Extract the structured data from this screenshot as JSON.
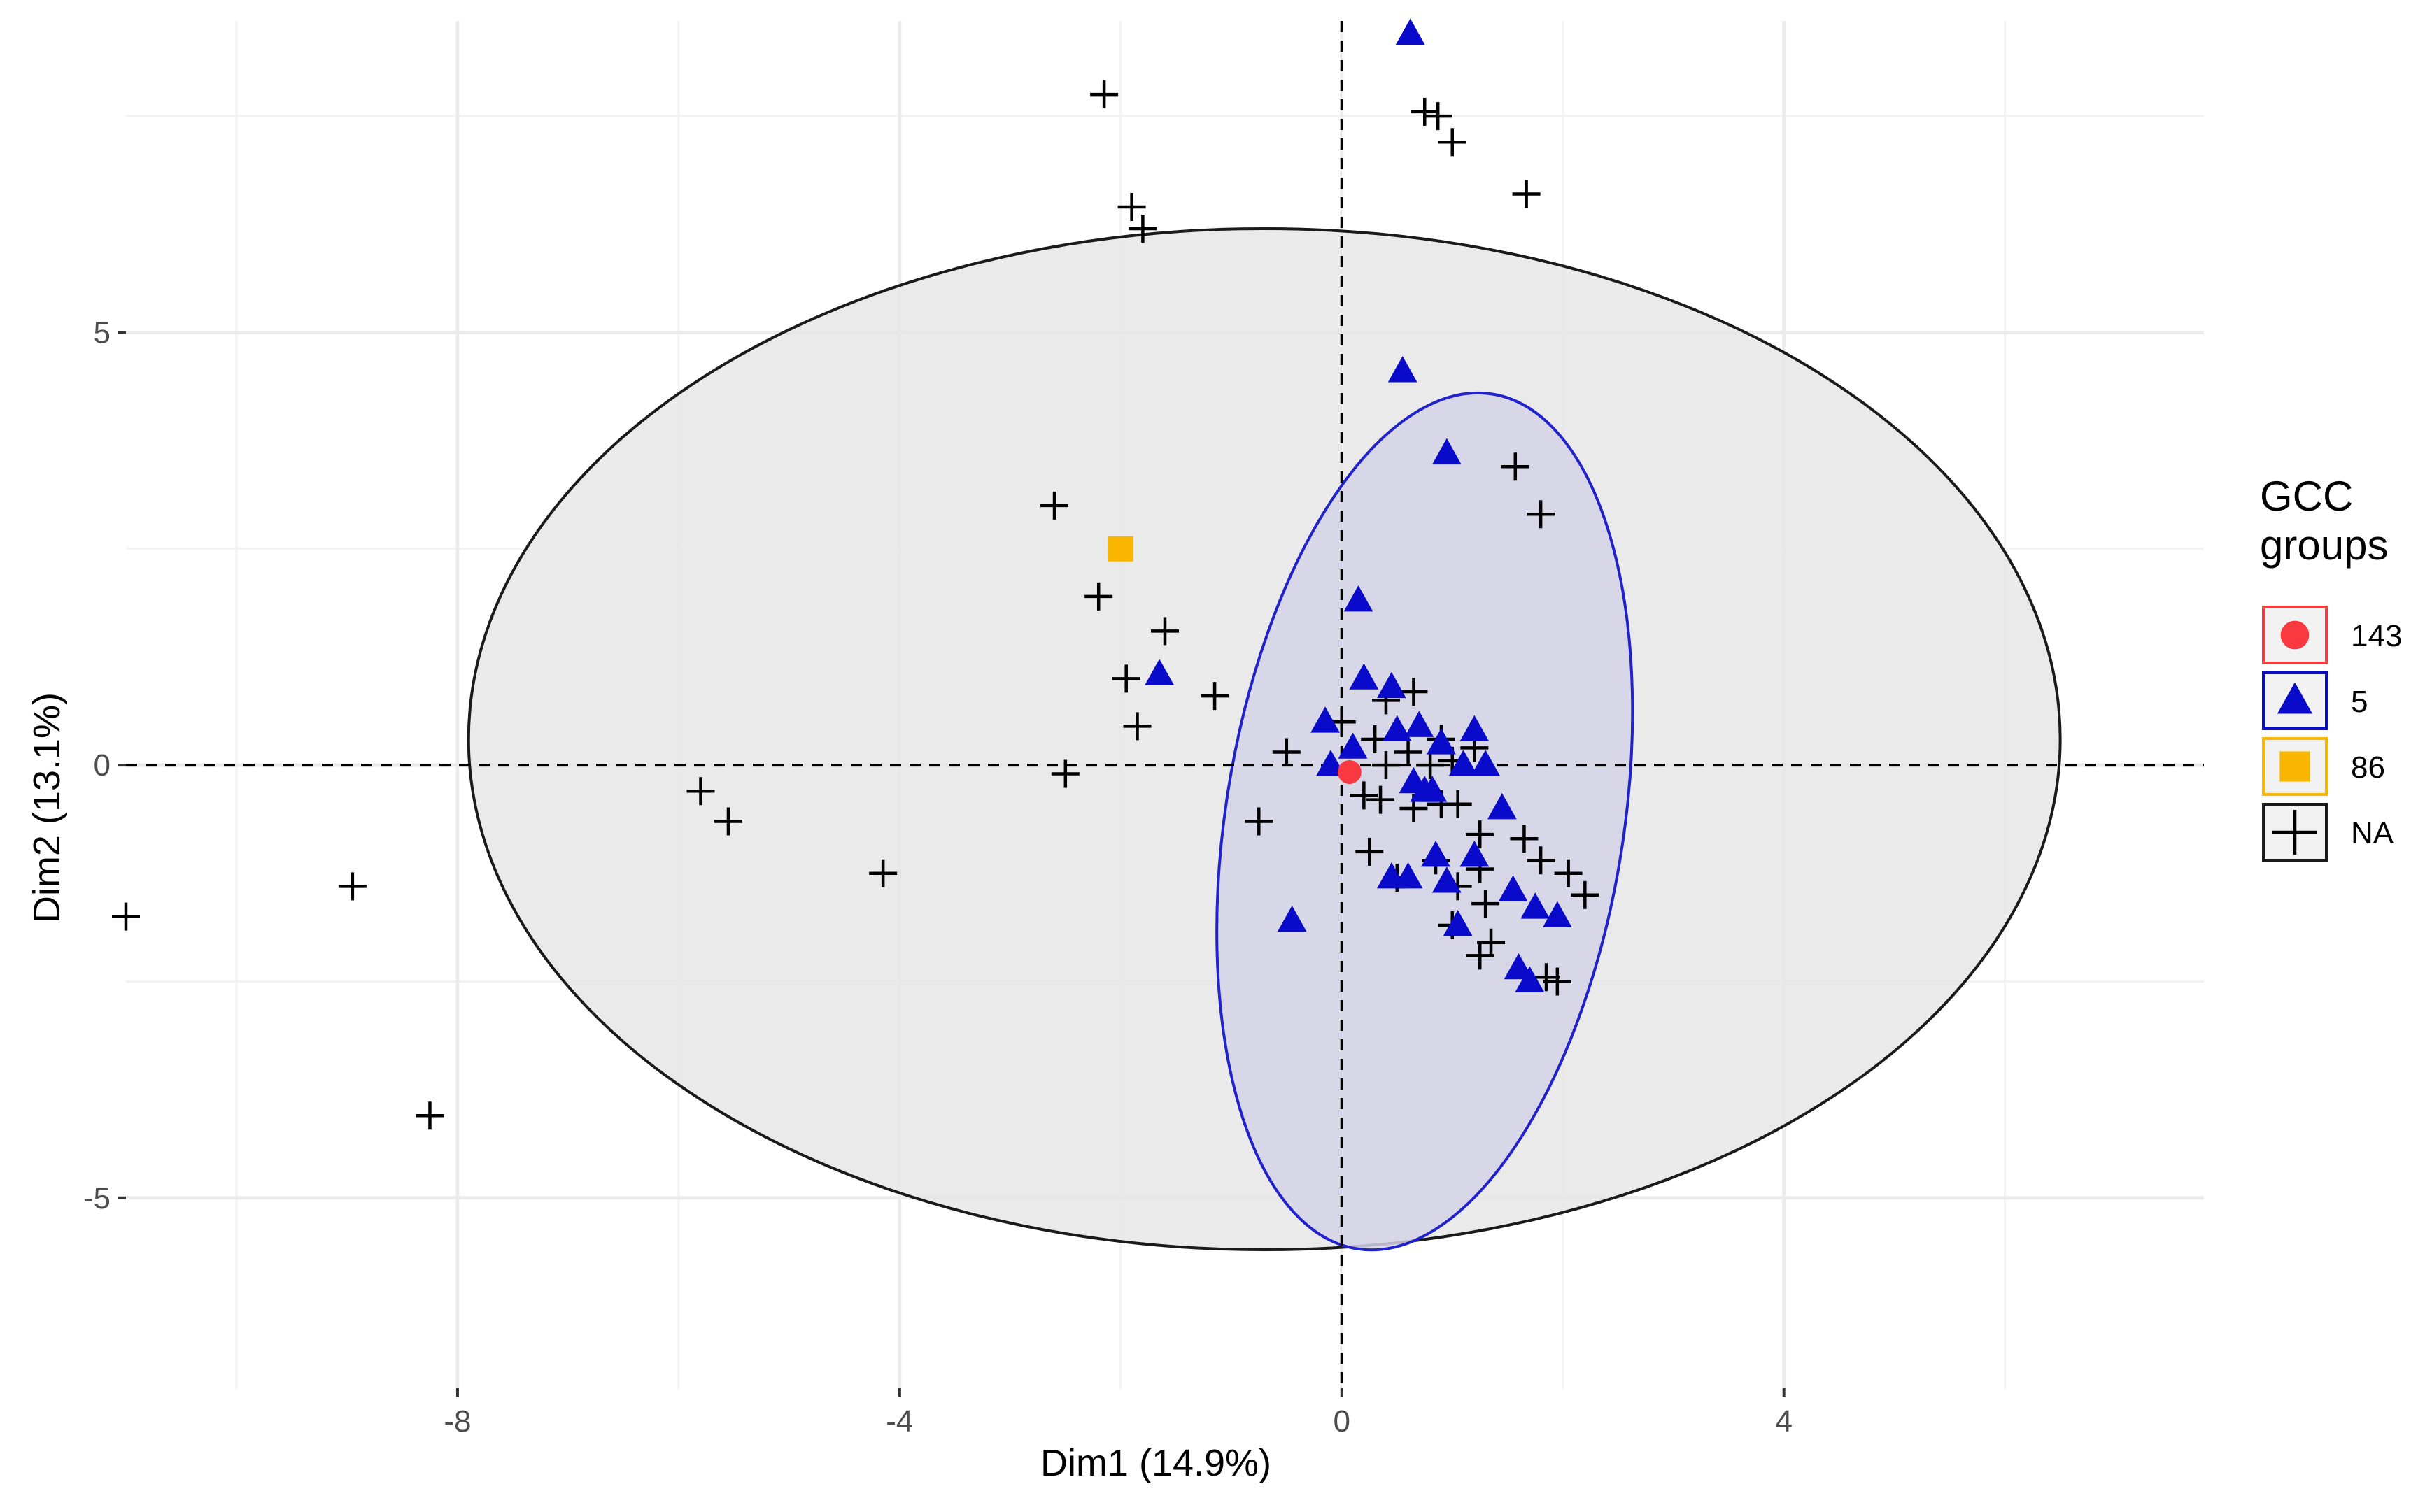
{
  "chart_data": {
    "type": "scatter",
    "title": "",
    "xlabel": "Dim1 (14.9%)",
    "ylabel": "Dim2 (13.1%)",
    "xlim": [
      -11,
      7.8
    ],
    "ylim": [
      -7.2,
      8.6
    ],
    "x_ticks": [
      -8,
      -4,
      0,
      4
    ],
    "x_tick_labels": [
      "-8",
      "-4",
      "0",
      "4"
    ],
    "x_minor_grid": [
      -10,
      -6,
      -2,
      2,
      6
    ],
    "y_ticks": [
      -5,
      0,
      5
    ],
    "y_tick_labels": [
      "-5",
      "0",
      "5"
    ],
    "y_minor_grid": [
      -2.5,
      2.5,
      7.5
    ],
    "grid": true,
    "reference_lines": {
      "x": 0,
      "y": 0,
      "style": "dashed"
    },
    "legend": {
      "title_line1": "GCC",
      "title_line2": "groups",
      "placement": "right",
      "entries": [
        {
          "label": "143",
          "shape": "circle",
          "color": "#F8393F"
        },
        {
          "label": "5",
          "shape": "triangle",
          "color": "#0A0ACB"
        },
        {
          "label": "86",
          "shape": "square",
          "color": "#F9B500"
        },
        {
          "label": "NA",
          "shape": "cross",
          "color": "#000000"
        }
      ]
    },
    "ellipses": [
      {
        "group": "NA",
        "cx": -0.7,
        "cy": 0.3,
        "rx": 7.2,
        "ry": 5.9,
        "angle_deg": 0,
        "fill": "#E6E6E6",
        "stroke": "#1a1a1a"
      },
      {
        "group": "5",
        "cx": 0.75,
        "cy": -0.65,
        "rx": 1.8,
        "ry": 5.0,
        "angle_deg": -9,
        "fill": "#D3D4E6",
        "stroke": "#2222CC"
      }
    ],
    "series": [
      {
        "name": "143",
        "shape": "circle",
        "color": "#F8393F",
        "points": [
          [
            0.07,
            -0.08
          ]
        ]
      },
      {
        "name": "86",
        "shape": "square",
        "color": "#F9B500",
        "points": [
          [
            -2.0,
            2.5
          ]
        ]
      },
      {
        "name": "5",
        "shape": "triangle",
        "color": "#0A0ACB",
        "points": [
          [
            0.62,
            8.45
          ],
          [
            0.55,
            4.55
          ],
          [
            0.95,
            3.6
          ],
          [
            0.15,
            1.9
          ],
          [
            -1.65,
            1.05
          ],
          [
            0.2,
            1.0
          ],
          [
            0.45,
            0.9
          ],
          [
            -0.15,
            0.5
          ],
          [
            0.5,
            0.4
          ],
          [
            0.7,
            0.45
          ],
          [
            1.2,
            0.4
          ],
          [
            0.1,
            0.2
          ],
          [
            0.9,
            0.25
          ],
          [
            1.1,
            0.0
          ],
          [
            1.3,
            0.0
          ],
          [
            -0.1,
            0.0
          ],
          [
            0.65,
            -0.2
          ],
          [
            0.75,
            -0.3
          ],
          [
            1.45,
            -0.5
          ],
          [
            0.85,
            -1.05
          ],
          [
            1.2,
            -1.05
          ],
          [
            0.45,
            -1.3
          ],
          [
            0.6,
            -1.3
          ],
          [
            0.95,
            -1.35
          ],
          [
            1.55,
            -1.45
          ],
          [
            1.75,
            -1.65
          ],
          [
            1.95,
            -1.75
          ],
          [
            -0.45,
            -1.8
          ],
          [
            1.05,
            -1.85
          ],
          [
            1.6,
            -2.35
          ],
          [
            1.7,
            -2.5
          ],
          [
            0.82,
            -0.3
          ]
        ]
      },
      {
        "name": "NA",
        "shape": "cross",
        "color": "#000000",
        "points": [
          [
            -2.15,
            7.75
          ],
          [
            -1.9,
            6.45
          ],
          [
            -1.8,
            6.2
          ],
          [
            0.75,
            7.55
          ],
          [
            0.87,
            7.5
          ],
          [
            1.0,
            7.2
          ],
          [
            1.67,
            6.6
          ],
          [
            1.57,
            3.45
          ],
          [
            1.8,
            2.9
          ],
          [
            -2.6,
            3.0
          ],
          [
            -2.2,
            1.95
          ],
          [
            -1.6,
            1.55
          ],
          [
            -1.95,
            1.0
          ],
          [
            -1.85,
            0.45
          ],
          [
            -1.15,
            0.8
          ],
          [
            -2.5,
            -0.1
          ],
          [
            -5.8,
            -0.3
          ],
          [
            -5.55,
            -0.65
          ],
          [
            -4.15,
            -1.25
          ],
          [
            -8.95,
            -1.4
          ],
          [
            -11.0,
            -1.75
          ],
          [
            -8.25,
            -4.05
          ],
          [
            -0.75,
            -0.65
          ],
          [
            -0.5,
            0.15
          ],
          [
            0.0,
            0.5
          ],
          [
            0.4,
            0.75
          ],
          [
            0.65,
            0.85
          ],
          [
            0.3,
            0.3
          ],
          [
            0.6,
            0.15
          ],
          [
            0.9,
            0.3
          ],
          [
            1.2,
            0.2
          ],
          [
            0.4,
            0.0
          ],
          [
            0.8,
            0.0
          ],
          [
            1.0,
            0.05
          ],
          [
            0.2,
            -0.35
          ],
          [
            0.35,
            -0.4
          ],
          [
            0.65,
            -0.5
          ],
          [
            0.9,
            -0.45
          ],
          [
            1.05,
            -0.45
          ],
          [
            0.25,
            -1.0
          ],
          [
            0.85,
            -1.1
          ],
          [
            1.25,
            -0.8
          ],
          [
            1.65,
            -0.85
          ],
          [
            1.8,
            -1.1
          ],
          [
            2.05,
            -1.25
          ],
          [
            2.2,
            -1.5
          ],
          [
            0.5,
            -1.3
          ],
          [
            1.05,
            -1.4
          ],
          [
            1.25,
            -1.2
          ],
          [
            1.3,
            -1.6
          ],
          [
            1.0,
            -1.85
          ],
          [
            1.35,
            -2.05
          ],
          [
            1.25,
            -2.2
          ],
          [
            1.85,
            -2.45
          ],
          [
            1.95,
            -2.5
          ]
        ]
      }
    ]
  }
}
